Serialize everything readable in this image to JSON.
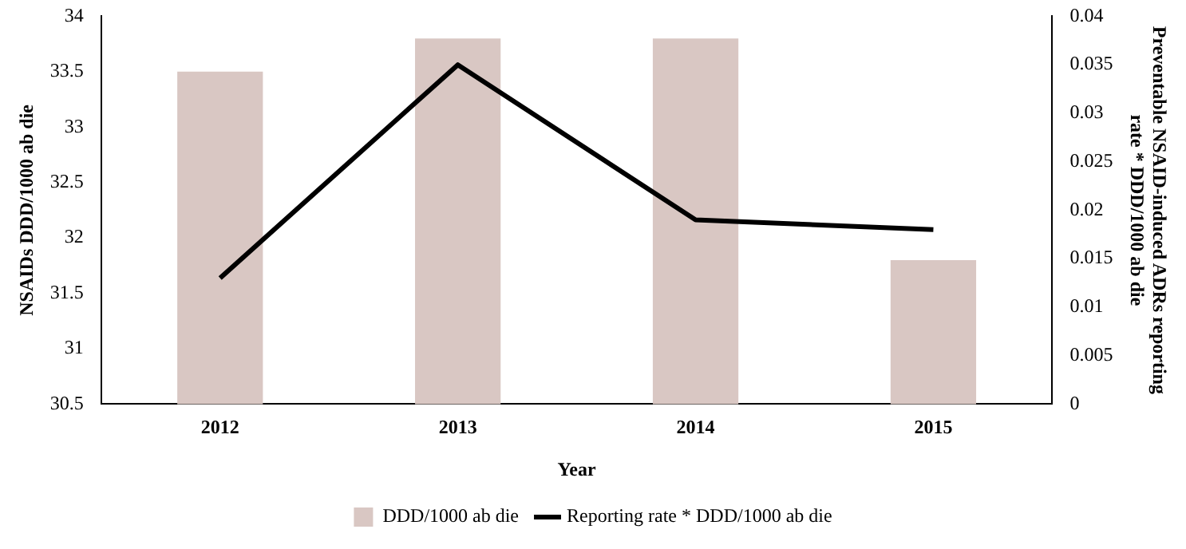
{
  "chart_data": {
    "type": "bar",
    "xlabel": "Year",
    "ylabel": "NSAIDs DDD/1000 ab die",
    "y2label": "Preventable NSAID-induced ADRs reporting rate * DDD/1000 ab die",
    "categories": [
      "2012",
      "2013",
      "2014",
      "2015"
    ],
    "series": [
      {
        "name": "DDD/1000 ab die",
        "color": "#d9c7c3",
        "values": [
          33.5,
          33.8,
          33.8,
          31.8
        ]
      },
      {
        "name": "Reporting rate * DDD/1000 ab die",
        "type": "line",
        "axis": "y2",
        "color": "#000000",
        "values": [
          0.013,
          0.035,
          0.019,
          0.018
        ]
      }
    ],
    "ylim": [
      30.5,
      34
    ],
    "yticks": [
      30.5,
      31,
      31.5,
      32,
      32.5,
      33,
      33.5,
      34
    ],
    "y2lim": [
      0,
      0.04
    ],
    "y2ticks": [
      0,
      0.005,
      0.01,
      0.015,
      0.02,
      0.025,
      0.03,
      0.035,
      0.04
    ],
    "grid": false,
    "legend": "bottom",
    "marker": "none",
    "line_style": "solid"
  }
}
